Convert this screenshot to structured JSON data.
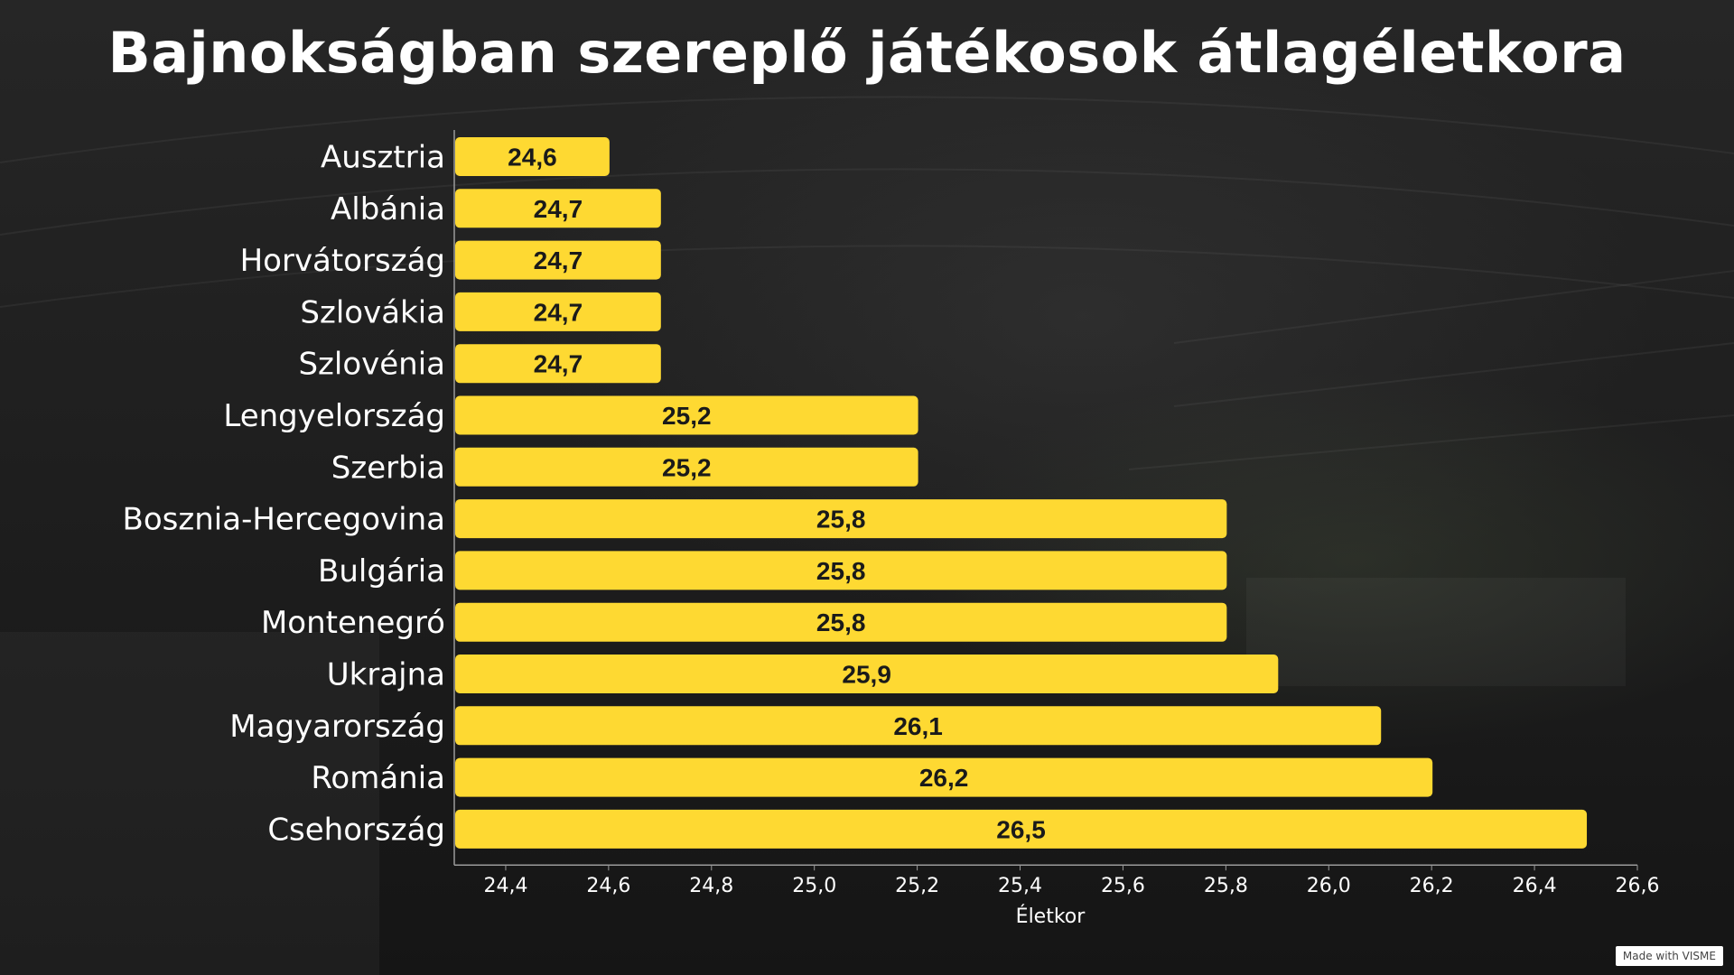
{
  "page": {
    "title": "Bajnokságban szereplő játékosok átlagéletkora",
    "watermark": "Made with VISME"
  },
  "colors": {
    "bar": "#FED932",
    "axis": "#9a9a9a",
    "text": "#ffffff",
    "value_text": "#1a1a1a"
  },
  "chart_data": {
    "type": "bar",
    "orientation": "horizontal",
    "title": "Bajnokságban szereplő játékosok átlagéletkora",
    "xlabel": "Életkor",
    "ylabel": "",
    "categories": [
      "Ausztria",
      "Albánia",
      "Horvátország",
      "Szlovákia",
      "Szlovénia",
      "Lengyelország",
      "Szerbia",
      "Bosznia-Hercegovina",
      "Bulgária",
      "Montenegró",
      "Ukrajna",
      "Magyarország",
      "Románia",
      "Csehország"
    ],
    "values": [
      24.6,
      24.7,
      24.7,
      24.7,
      24.7,
      25.2,
      25.2,
      25.8,
      25.8,
      25.8,
      25.9,
      26.1,
      26.2,
      26.5
    ],
    "value_labels": [
      "24,6",
      "24,7",
      "24,7",
      "24,7",
      "24,7",
      "25,2",
      "25,2",
      "25,8",
      "25,8",
      "25,8",
      "25,9",
      "26,1",
      "26,2",
      "26,5"
    ],
    "xlim": [
      24.3,
      26.6
    ],
    "ticks": [
      24.4,
      24.6,
      24.8,
      25.0,
      25.2,
      25.4,
      25.6,
      25.8,
      26.0,
      26.2,
      26.4,
      26.6
    ],
    "tick_labels": [
      "24,4",
      "24,6",
      "24,8",
      "25,0",
      "25,2",
      "25,4",
      "25,6",
      "25,8",
      "26,0",
      "26,2",
      "26,4",
      "26,6"
    ],
    "grid": false,
    "legend": "none"
  }
}
